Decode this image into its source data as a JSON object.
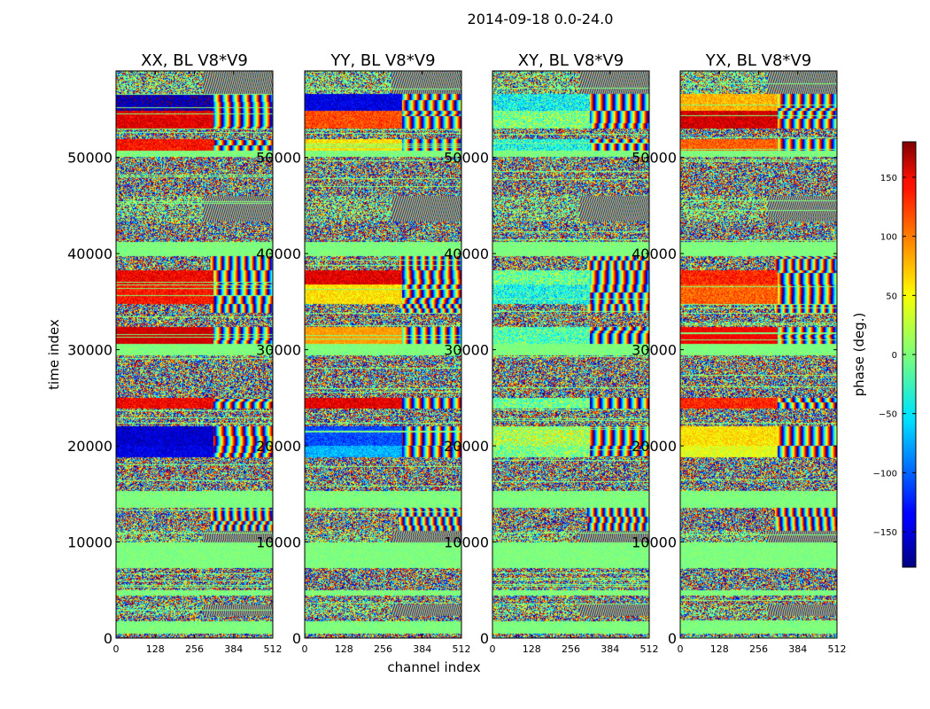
{
  "figure": {
    "suptitle": "2014-09-18 0.0-24.0"
  },
  "chart_data": {
    "type": "heatmap",
    "title": "2014-09-18 0.0-24.0",
    "xlabel": "channel index",
    "ylabel": "time index",
    "xlim": [
      0,
      512
    ],
    "ylim": [
      0,
      59000
    ],
    "x_ticks": [
      0,
      128,
      256,
      384,
      512
    ],
    "y_ticks": [
      0,
      10000,
      20000,
      30000,
      40000,
      50000
    ],
    "x_tick_labels": [
      "0",
      "128",
      "256",
      "384",
      "512"
    ],
    "y_tick_labels": [
      "0",
      "10000",
      "20000",
      "30000",
      "40000",
      "50000"
    ],
    "panels": [
      {
        "title": "XX, BL V8*V9",
        "pol": "XX"
      },
      {
        "title": "YY, BL V8*V9",
        "pol": "YY"
      },
      {
        "title": "XY, BL V8*V9",
        "pol": "XY"
      },
      {
        "title": "YX, BL V8*V9",
        "pol": "YX"
      }
    ],
    "colorbar": {
      "label": "phase (deg.)",
      "range": [
        -180,
        180
      ],
      "ticks": [
        -150,
        -100,
        -50,
        0,
        50,
        100,
        150
      ],
      "tick_labels": [
        "−150",
        "−100",
        "−50",
        "0",
        "50",
        "100",
        "150"
      ],
      "colormap": "jet"
    }
  }
}
